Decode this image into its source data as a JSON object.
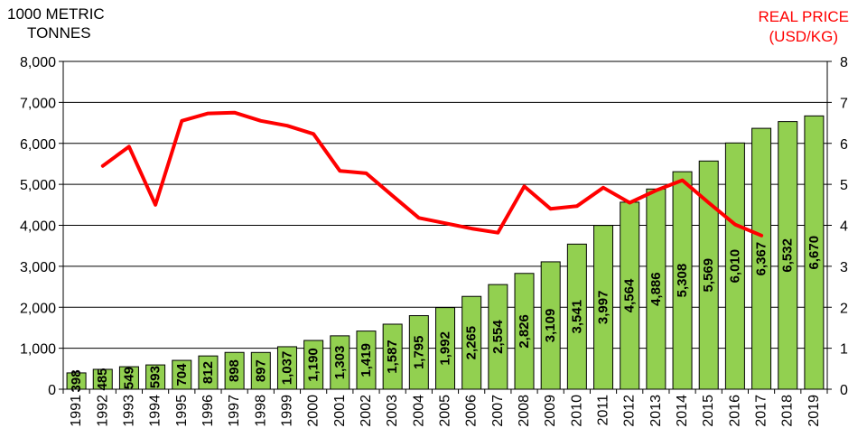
{
  "chart_data": {
    "type": "bar",
    "left_axis_label": [
      "1000 METRIC",
      "TONNES"
    ],
    "right_axis_label": [
      "REAL PRICE",
      "(USD/KG)"
    ],
    "categories": [
      "1991",
      "1992",
      "1993",
      "1994",
      "1995",
      "1996",
      "1997",
      "1998",
      "1999",
      "2000",
      "2001",
      "2002",
      "2003",
      "2004",
      "2005",
      "2006",
      "2007",
      "2008",
      "2009",
      "2010",
      "2011",
      "2012",
      "2013",
      "2014",
      "2015",
      "2016",
      "2017",
      "2018",
      "2019"
    ],
    "ylim": [
      0,
      8000
    ],
    "y_ticks": [
      "0",
      "1,000",
      "2,000",
      "3,000",
      "4,000",
      "5,000",
      "6,000",
      "7,000",
      "8,000"
    ],
    "y2lim": [
      0,
      8
    ],
    "y2_ticks": [
      "0",
      "1",
      "2",
      "3",
      "4",
      "5",
      "6",
      "7",
      "8"
    ],
    "grid": true,
    "series": [
      {
        "type": "bar",
        "color": "#92D050",
        "values": [
          398,
          485,
          549,
          593,
          704,
          812,
          898,
          897,
          1037,
          1190,
          1303,
          1419,
          1587,
          1795,
          1992,
          2265,
          2554,
          2826,
          3109,
          3541,
          3997,
          4564,
          4886,
          5308,
          5569,
          6010,
          6367,
          6532,
          6670
        ],
        "labels": [
          "398",
          "485",
          "549",
          "593",
          "704",
          "812",
          "898",
          "897",
          "1,037",
          "1,190",
          "1,303",
          "1,419",
          "1,587",
          "1,795",
          "1,992",
          "2,265",
          "2,554",
          "2,826",
          "3,109",
          "3,541",
          "3,997",
          "4,564",
          "4,886",
          "5,308",
          "5,569",
          "6,010",
          "6,367",
          "6,532",
          "6,670"
        ]
      },
      {
        "type": "line",
        "axis": "right",
        "color": "#FF0000",
        "x": [
          "1992",
          "1993",
          "1994",
          "1995",
          "1996",
          "1997",
          "1998",
          "1999",
          "2000",
          "2001",
          "2002",
          "2003",
          "2004",
          "2005",
          "2006",
          "2007",
          "2008",
          "2009",
          "2010",
          "2011",
          "2012",
          "2013",
          "2014",
          "2015",
          "2016",
          "2017"
        ],
        "values": [
          5.45,
          5.92,
          4.5,
          6.55,
          6.73,
          6.75,
          6.55,
          6.43,
          6.23,
          5.33,
          5.27,
          4.72,
          4.18,
          4.05,
          3.92,
          3.82,
          4.95,
          4.4,
          4.47,
          4.92,
          4.55,
          4.85,
          5.1,
          4.55,
          4.02,
          3.75
        ]
      }
    ]
  }
}
